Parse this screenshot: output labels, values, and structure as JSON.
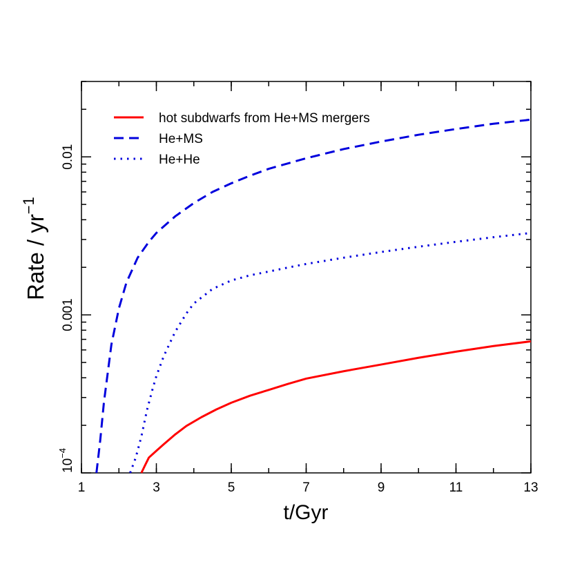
{
  "chart_data": {
    "type": "line",
    "xlabel": "t/Gyr",
    "ylabel_base": "Rate / yr",
    "ylabel_exponent": "−1",
    "xlim": [
      1,
      13
    ],
    "ylim": [
      0.0001,
      0.03
    ],
    "yscale": "log",
    "x_ticks": [
      1,
      3,
      5,
      7,
      9,
      11,
      13
    ],
    "y_tick_labels": [
      {
        "value": 0.0001,
        "base": "10",
        "exponent": "−4"
      },
      {
        "value": 0.001,
        "text": "0.001"
      },
      {
        "value": 0.01,
        "text": "0.01"
      }
    ],
    "grid": false,
    "legend_position": "top-left",
    "series": [
      {
        "name": "hot subdwarfs from He+MS mergers",
        "color": "#ff0000",
        "style": "solid",
        "x": [
          2.6,
          2.7,
          2.8,
          3.0,
          3.2,
          3.5,
          3.8,
          4.2,
          4.6,
          5.0,
          5.5,
          6.0,
          6.5,
          7.0,
          8.0,
          9.0,
          10.0,
          11.0,
          12.0,
          13.0
        ],
        "y": [
          0.0001,
          0.000112,
          0.000125,
          0.000138,
          0.000152,
          0.000175,
          0.000198,
          0.000225,
          0.000252,
          0.000278,
          0.000308,
          0.000335,
          0.000365,
          0.000395,
          0.00044,
          0.000485,
          0.000535,
          0.000585,
          0.000635,
          0.00068
        ]
      },
      {
        "name": "He+MS",
        "color": "#0000dd",
        "style": "dashed",
        "x": [
          1.4,
          1.5,
          1.6,
          1.8,
          2.0,
          2.2,
          2.5,
          2.8,
          3.0,
          3.5,
          4.0,
          4.5,
          5.0,
          5.5,
          6.0,
          7.0,
          8.0,
          9.0,
          10.0,
          11.0,
          12.0,
          13.0
        ],
        "y": [
          0.0001,
          0.00016,
          0.00028,
          0.00065,
          0.0011,
          0.0016,
          0.0023,
          0.0029,
          0.0033,
          0.0042,
          0.0051,
          0.006,
          0.0068,
          0.0076,
          0.0084,
          0.0098,
          0.0112,
          0.0125,
          0.0138,
          0.015,
          0.0162,
          0.0172
        ]
      },
      {
        "name": "He+He",
        "color": "#0000dd",
        "style": "dotted",
        "x": [
          2.3,
          2.45,
          2.6,
          2.75,
          2.9,
          3.0,
          3.2,
          3.5,
          3.8,
          4.0,
          4.5,
          5.0,
          5.5,
          6.0,
          6.5,
          7.0,
          8.0,
          9.0,
          10.0,
          11.0,
          12.0,
          13.0
        ],
        "y": [
          0.0001,
          0.000125,
          0.00017,
          0.00025,
          0.00034,
          0.00041,
          0.00055,
          0.00078,
          0.00102,
          0.00118,
          0.00146,
          0.00165,
          0.00178,
          0.00188,
          0.00199,
          0.0021,
          0.0023,
          0.0025,
          0.0027,
          0.0029,
          0.0031,
          0.0033
        ]
      }
    ]
  }
}
